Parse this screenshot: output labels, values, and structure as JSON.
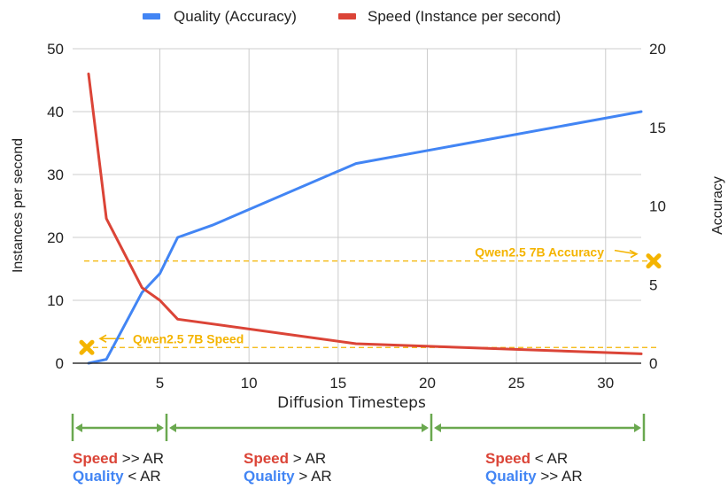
{
  "chart_data": {
    "type": "line",
    "title": "",
    "legend": {
      "placement": "top-center",
      "entries": [
        {
          "name": "Quality (Accuracy)",
          "color": "#4285f4"
        },
        {
          "name": "Speed (Instance per second)",
          "color": "#db4437"
        }
      ]
    },
    "xlabel": "Diffusion Timesteps",
    "ylabel_left": "Instances per second",
    "ylabel_right": "Accuracy",
    "xlim": [
      1,
      32
    ],
    "ylim_left": [
      0,
      50
    ],
    "ylim_right": [
      0,
      20
    ],
    "x_ticks": [
      5,
      10,
      15,
      20,
      25,
      30
    ],
    "y_ticks_left": [
      0,
      10,
      20,
      30,
      40,
      50
    ],
    "y_ticks_right": [
      0,
      5,
      10,
      15,
      20
    ],
    "grid": true,
    "series": [
      {
        "name": "Quality (Accuracy)",
        "axis": "right",
        "color": "#4285f4",
        "x": [
          1,
          2,
          4,
          5,
          6,
          8,
          16,
          32
        ],
        "values": [
          0,
          0.25,
          4.5,
          5.7,
          8.0,
          8.8,
          12.7,
          16.0
        ]
      },
      {
        "name": "Speed (Instance per second)",
        "axis": "left",
        "color": "#db4437",
        "x": [
          1,
          2,
          4,
          5,
          6,
          16,
          32
        ],
        "values": [
          46,
          23,
          12,
          10,
          7,
          3.1,
          1.5
        ]
      }
    ],
    "reference_lines": [
      {
        "label": "Qwen2.5 7B Speed",
        "axis": "left",
        "value": 2.5,
        "color": "#f4b400",
        "marker": "x",
        "marker_side": "left"
      },
      {
        "label": "Qwen2.5 7B Accuracy",
        "axis": "right",
        "value": 6.5,
        "color": "#f4b400",
        "marker": "x",
        "marker_side": "right"
      }
    ],
    "regions": [
      {
        "x_range": [
          1,
          5
        ],
        "speed_kw": "Speed",
        "speed_rel": ">> AR",
        "quality_kw": "Quality",
        "quality_rel": "< AR"
      },
      {
        "x_range": [
          5,
          20
        ],
        "speed_kw": "Speed",
        "speed_rel": "> AR",
        "quality_kw": "Quality",
        "quality_rel": "> AR"
      },
      {
        "x_range": [
          20,
          32
        ],
        "speed_kw": "Speed",
        "speed_rel": "< AR",
        "quality_kw": "Quality",
        "quality_rel": ">> AR"
      }
    ],
    "region_color": "#6aa84f",
    "speed_color": "#db4437",
    "quality_color": "#4285f4"
  }
}
